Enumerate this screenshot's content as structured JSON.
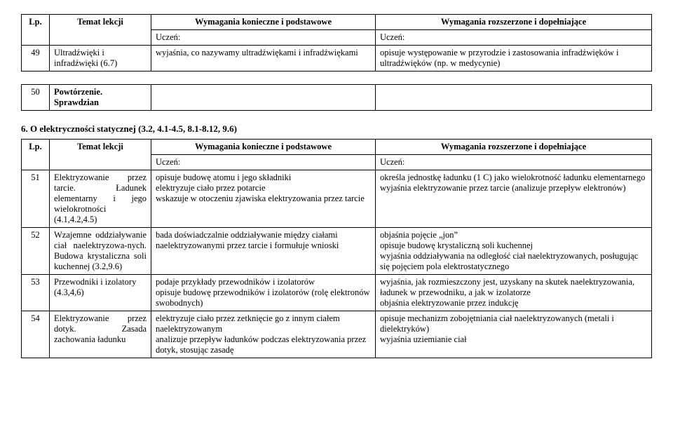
{
  "table1": {
    "headers": {
      "lp": "Lp.",
      "topic": "Temat lekcji",
      "basic": "Wymagania konieczne i podstawowe",
      "ext": "Wymagania rozszerzone i dopełniające"
    },
    "uczen": "Uczeń:",
    "rows": [
      {
        "lp": "49",
        "topic": "Ultradźwięki i infradźwięki (6.7)",
        "basic": "wyjaśnia, co nazywamy ultradźwiękami i infradźwiękami",
        "ext": "opisuje występowanie w przyrodzie i zastosowania infradźwięków i ultradźwięków (np. w medycynie)"
      }
    ],
    "row50": {
      "lp": "50",
      "topic": "Powtórzenie. Sprawdzian"
    }
  },
  "section": "6. O elektryczności statycznej (3.2, 4.1-4.5, 8.1-8.12, 9.6)",
  "table2": {
    "headers": {
      "lp": "Lp.",
      "topic": "Temat lekcji",
      "basic": "Wymagania konieczne i podstawowe",
      "ext": "Wymagania rozszerzone i dopełniające"
    },
    "uczen": "Uczeń:",
    "rows": [
      {
        "lp": "51",
        "topic": "Elektryzowanie przez tarcie. Ładunek elementarny i jego wielokrotności (4.1,4.2,4.5)",
        "basic_lines": [
          "opisuje budowę atomu i jego składniki",
          "elektryzuje ciało przez potarcie",
          "wskazuje w otoczeniu zjawiska elektryzowania przez tarcie"
        ],
        "ext_lines": [
          "określa jednostkę ładunku (1 C) jako wielokrotność ładunku elementarnego",
          "wyjaśnia elektryzowanie przez tarcie (analizuje przepływ elektronów)"
        ]
      },
      {
        "lp": "52",
        "topic": "Wzajemne oddziaływanie ciał naelektryzowa-nych. Budowa krystaliczna soli kuchennej (3.2,9.6)",
        "basic_lines": [
          "bada doświadczalnie oddziaływanie między ciałami naelektryzowanymi przez tarcie i formułuje wnioski"
        ],
        "ext_lines": [
          "objaśnia pojęcie „jon”",
          "opisuje budowę krystaliczną soli kuchennej",
          "wyjaśnia oddziaływania na odległość ciał naelektryzowanych, posługując się pojęciem pola elektrostatycznego"
        ]
      },
      {
        "lp": "53",
        "topic": "Przewodniki i izolatory (4.3,4,6)",
        "basic_lines": [
          "podaje przykłady przewodników i izolatorów",
          "opisuje budowę przewodników i izolatorów (rolę elektronów swobodnych)"
        ],
        "ext_lines": [
          "wyjaśnia, jak rozmieszczony jest, uzyskany na skutek naelektryzowania, ładunek w przewodniku, a jak w izolatorze",
          "objaśnia elektryzowanie przez indukcję"
        ]
      },
      {
        "lp": "54",
        "topic": "Elektryzowanie przez dotyk. Zasada zachowania ładunku",
        "basic_lines": [
          "elektryzuje ciało przez zetknięcie go z innym ciałem naelektryzowanym",
          "analizuje przepływ ładunków podczas elektryzowania przez dotyk, stosując zasadę"
        ],
        "ext_lines": [
          "opisuje mechanizm zobojętniania ciał naelektryzowanych (metali i dielektryków)",
          "wyjaśnia uziemianie ciał"
        ]
      }
    ]
  }
}
